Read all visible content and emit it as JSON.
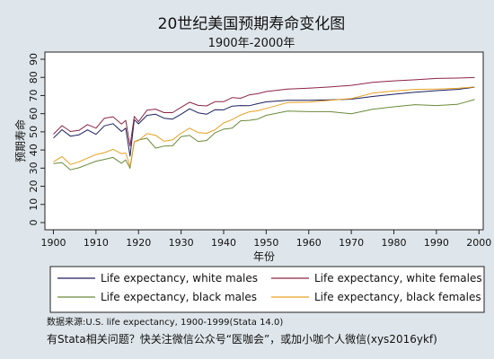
{
  "chart_data": {
    "type": "line",
    "title": "20世纪美国预期寿命变化图",
    "subtitle": "1900年-2000年",
    "xlabel": "年份",
    "ylabel": "预期寿命",
    "xlim": [
      1898,
      2001
    ],
    "ylim": [
      0,
      90
    ],
    "xticks": [
      1900,
      1910,
      1920,
      1930,
      1940,
      1950,
      1960,
      1970,
      1980,
      1990,
      2000
    ],
    "yticks": [
      0,
      10,
      20,
      30,
      40,
      50,
      60,
      70,
      80,
      90
    ],
    "grid": false,
    "legend_position": "bottom",
    "x": [
      1900,
      1902,
      1904,
      1906,
      1908,
      1910,
      1912,
      1914,
      1916,
      1917,
      1918,
      1919,
      1920,
      1922,
      1924,
      1926,
      1928,
      1930,
      1932,
      1934,
      1936,
      1938,
      1940,
      1942,
      1944,
      1946,
      1948,
      1950,
      1955,
      1960,
      1965,
      1970,
      1975,
      1980,
      1985,
      1990,
      1995,
      1999
    ],
    "series": [
      {
        "name": "Life expectancy, white males",
        "color": "#1a1f5c",
        "values": [
          46.6,
          51.2,
          47.6,
          48.3,
          51.1,
          48.6,
          53.3,
          54.5,
          50.2,
          52.0,
          36.6,
          56.7,
          54.4,
          59.1,
          59.7,
          57.5,
          57.0,
          59.7,
          62.7,
          60.5,
          59.7,
          62.2,
          62.1,
          64.2,
          64.5,
          64.4,
          65.5,
          66.5,
          67.4,
          67.4,
          67.6,
          68.0,
          69.5,
          70.7,
          71.8,
          72.7,
          73.4,
          74.6
        ]
      },
      {
        "name": "Life expectancy, white females",
        "color": "#8b2444",
        "values": [
          48.7,
          53.4,
          50.2,
          50.8,
          54.0,
          52.0,
          57.5,
          58.3,
          54.3,
          56.3,
          42.2,
          58.5,
          55.6,
          61.9,
          62.5,
          60.6,
          60.6,
          63.5,
          66.3,
          64.6,
          64.3,
          66.6,
          66.6,
          68.9,
          68.5,
          70.3,
          71.0,
          72.2,
          73.6,
          74.1,
          74.7,
          75.6,
          77.3,
          78.1,
          78.7,
          79.4,
          79.6,
          79.9
        ]
      },
      {
        "name": "Life expectancy, black males",
        "color": "#6b8a3a",
        "values": [
          32.5,
          33.1,
          29.1,
          30.2,
          32.0,
          33.8,
          34.8,
          35.9,
          32.7,
          34.5,
          29.9,
          44.5,
          45.5,
          46.5,
          41.0,
          42.2,
          42.3,
          47.3,
          48.0,
          44.7,
          45.2,
          49.5,
          51.5,
          52.0,
          56.1,
          56.3,
          57.0,
          59.1,
          61.4,
          61.1,
          61.1,
          60.0,
          62.4,
          63.8,
          65.0,
          64.5,
          65.2,
          67.8
        ]
      },
      {
        "name": "Life expectancy, black females",
        "color": "#e8a020",
        "values": [
          33.5,
          36.4,
          32.0,
          33.5,
          35.5,
          37.5,
          38.5,
          40.4,
          38.0,
          38.3,
          31.1,
          44.5,
          45.2,
          49.0,
          48.1,
          44.8,
          45.6,
          49.2,
          52.0,
          49.6,
          49.2,
          51.2,
          54.9,
          56.7,
          59.3,
          61.0,
          61.6,
          62.9,
          66.1,
          66.3,
          67.4,
          68.3,
          71.3,
          72.5,
          73.4,
          73.6,
          74.0,
          74.7
        ]
      }
    ]
  },
  "footer": {
    "source_note": "数据来源:U.S. life expectancy, 1900-1999(Stata 14.0)",
    "contact_note": "有Stata相关问题？快关注微信公众号“医咖会”，或加小咖个人微信(xys2016ykf)"
  }
}
